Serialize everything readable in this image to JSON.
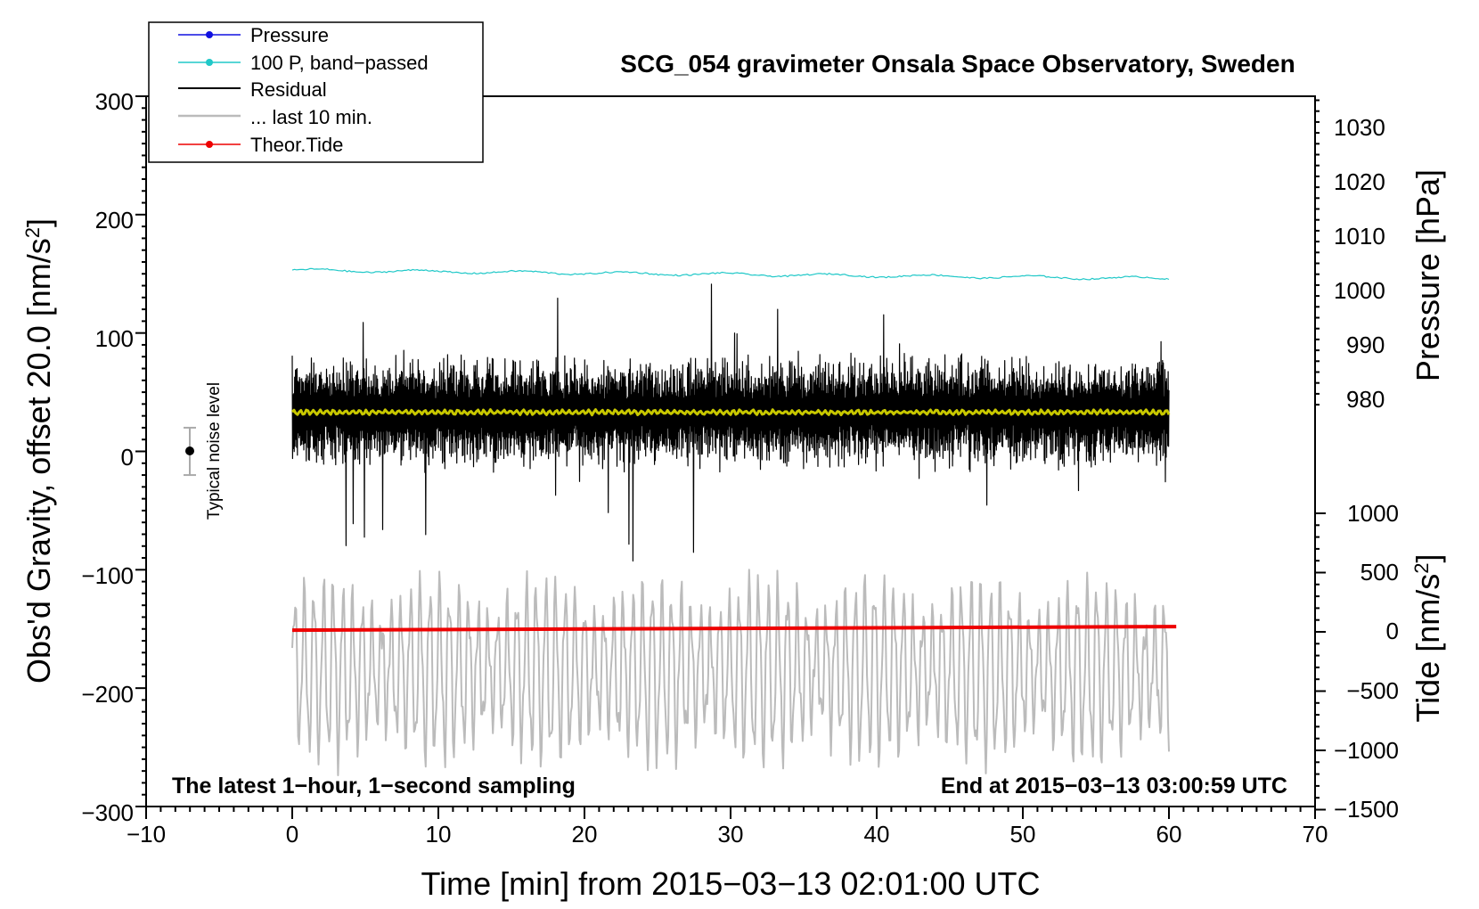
{
  "chart_data": {
    "type": "line",
    "title": "SCG_054 gravimeter Onsala Space Observatory, Sweden",
    "xlabel": "Time [min] from 2015−03−13 02:01:00 UTC",
    "ylabel_left": "Obs'd Gravity, offset 20.0 [nm/s",
    "ylabel_left_suffix": "]",
    "ylabel_right_pressure": "Pressure [hPa]",
    "ylabel_right_tide": "Tide [nm/s",
    "ylabel_right_tide_suffix": "]",
    "superscript": "2",
    "xlim": [
      -10,
      70
    ],
    "ylim_left": [
      -300,
      300
    ],
    "x_ticks": [
      "−10",
      "0",
      "10",
      "20",
      "30",
      "40",
      "50",
      "60",
      "70"
    ],
    "y_ticks_left": [
      "300",
      "200",
      "100",
      "0",
      "−100",
      "−200",
      "−300"
    ],
    "y_ticks_pressure": [
      "1030",
      "1020",
      "1010",
      "1000",
      "990",
      "980"
    ],
    "y_ticks_tide": [
      "1000",
      "500",
      "0",
      "−500",
      "−1000",
      "−1500"
    ],
    "legend": [
      "Pressure",
      "100 P, band−passed",
      "Residual",
      "... last 10 min.",
      "Theor.Tide"
    ],
    "annotation_left": "The latest 1−hour, 1−second sampling",
    "annotation_right": "End at 2015−03−13 03:00:59 UTC",
    "noise_label": "Typical noise level",
    "noise_level": 20,
    "pressure_axis_range_hPa": [
      1030,
      980
    ],
    "tide_axis_range": [
      -1500,
      1000
    ],
    "series": [
      {
        "name": "Pressure",
        "color": "#1010e0",
        "style": "line+points",
        "note": "not visible in plot area"
      },
      {
        "name": "100 P, band−passed",
        "color": "#20c8c8",
        "x_range": [
          0,
          60
        ],
        "y_approx_start": 153,
        "y_approx_end": 146
      },
      {
        "name": "Residual",
        "color": "#000000",
        "x_range": [
          0,
          60
        ],
        "center": 33,
        "amplitude_typical": 45,
        "amplitude_max": 135
      },
      {
        "name": "... last 10 min.",
        "color": "#bbbbbb",
        "x_range": [
          0,
          60
        ],
        "center": -185,
        "amplitude_typical": 60
      },
      {
        "name": "Theor.Tide",
        "color": "#ee0000",
        "x_range": [
          0,
          60.5
        ],
        "y_start": -151,
        "y_end": -148
      },
      {
        "name": "smoothed residual",
        "color": "#c8c800",
        "x_range": [
          0,
          60
        ],
        "y_approx": 33
      }
    ]
  }
}
